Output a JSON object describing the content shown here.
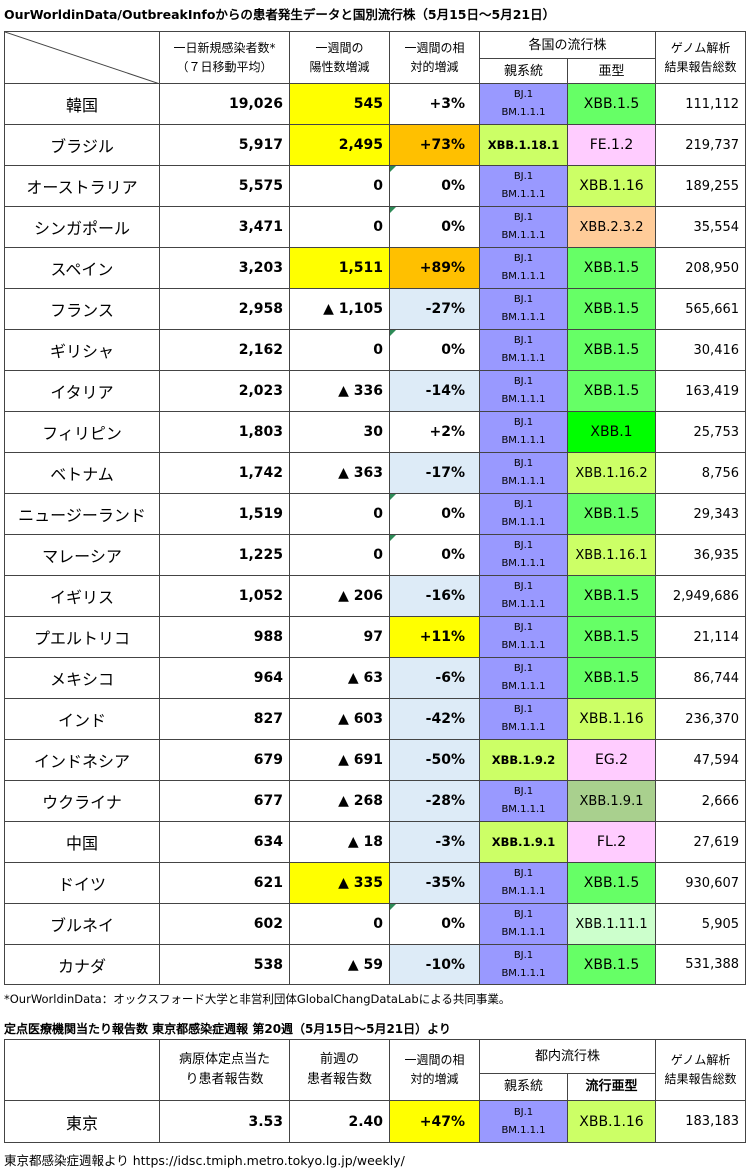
{
  "title": "OurWorldinData/OutbreakInfoからの患者発生データと国別流行株（5月15日～5月21日）",
  "headers": {
    "daily_line1": "一日新規感染者数*",
    "daily_line2": "（７日移動平均）",
    "weekly_line1": "一週間の",
    "weekly_line2": "陽性数増減",
    "rel_line1": "一週間の相",
    "rel_line2": "対的増減",
    "strains": "各国の流行株",
    "parent": "親系統",
    "sub": "亜型",
    "genome_line1": "ゲノム解析",
    "genome_line2": "結果報告総数"
  },
  "rows": [
    {
      "country": "韓国",
      "daily": "19,026",
      "weekly": "545",
      "rel": "+3%",
      "parent1": "BJ.1",
      "parent2": "BM.1.1.1",
      "sub": "XBB.1.5",
      "genome": "111,112"
    },
    {
      "country": "ブラジル",
      "daily": "5,917",
      "weekly": "2,495",
      "rel": "+73%",
      "parent1": "XBB.1.18.1",
      "parent2": "",
      "sub": "FE.1.2",
      "genome": "219,737"
    },
    {
      "country": "オーストラリア",
      "daily": "5,575",
      "weekly": "0",
      "rel": "0%",
      "parent1": "BJ.1",
      "parent2": "BM.1.1.1",
      "sub": "XBB.1.16",
      "genome": "189,255"
    },
    {
      "country": "シンガポール",
      "daily": "3,471",
      "weekly": "0",
      "rel": "0%",
      "parent1": "BJ.1",
      "parent2": "BM.1.1.1",
      "sub": "XBB.2.3.2",
      "genome": "35,554"
    },
    {
      "country": "スペイン",
      "daily": "3,203",
      "weekly": "1,511",
      "rel": "+89%",
      "parent1": "BJ.1",
      "parent2": "BM.1.1.1",
      "sub": "XBB.1.5",
      "genome": "208,950"
    },
    {
      "country": "フランス",
      "daily": "2,958",
      "weekly": "▲ 1,105",
      "rel": "-27%",
      "parent1": "BJ.1",
      "parent2": "BM.1.1.1",
      "sub": "XBB.1.5",
      "genome": "565,661"
    },
    {
      "country": "ギリシャ",
      "daily": "2,162",
      "weekly": "0",
      "rel": "0%",
      "parent1": "BJ.1",
      "parent2": "BM.1.1.1",
      "sub": "XBB.1.5",
      "genome": "30,416"
    },
    {
      "country": "イタリア",
      "daily": "2,023",
      "weekly": "▲ 336",
      "rel": "-14%",
      "parent1": "BJ.1",
      "parent2": "BM.1.1.1",
      "sub": "XBB.1.5",
      "genome": "163,419"
    },
    {
      "country": "フィリピン",
      "daily": "1,803",
      "weekly": "30",
      "rel": "+2%",
      "parent1": "BJ.1",
      "parent2": "BM.1.1.1",
      "sub": "XBB.1",
      "genome": "25,753"
    },
    {
      "country": "ベトナム",
      "daily": "1,742",
      "weekly": "▲ 363",
      "rel": "-17%",
      "parent1": "BJ.1",
      "parent2": "BM.1.1.1",
      "sub": "XBB.1.16.2",
      "genome": "8,756"
    },
    {
      "country": "ニュージーランド",
      "daily": "1,519",
      "weekly": "0",
      "rel": "0%",
      "parent1": "BJ.1",
      "parent2": "BM.1.1.1",
      "sub": "XBB.1.5",
      "genome": "29,343"
    },
    {
      "country": "マレーシア",
      "daily": "1,225",
      "weekly": "0",
      "rel": "0%",
      "parent1": "BJ.1",
      "parent2": "BM.1.1.1",
      "sub": "XBB.1.16.1",
      "genome": "36,935"
    },
    {
      "country": "イギリス",
      "daily": "1,052",
      "weekly": "▲ 206",
      "rel": "-16%",
      "parent1": "BJ.1",
      "parent2": "BM.1.1.1",
      "sub": "XBB.1.5",
      "genome": "2,949,686"
    },
    {
      "country": "プエルトリコ",
      "daily": "988",
      "weekly": "97",
      "rel": "+11%",
      "parent1": "BJ.1",
      "parent2": "BM.1.1.1",
      "sub": "XBB.1.5",
      "genome": "21,114"
    },
    {
      "country": "メキシコ",
      "daily": "964",
      "weekly": "▲ 63",
      "rel": "-6%",
      "parent1": "BJ.1",
      "parent2": "BM.1.1.1",
      "sub": "XBB.1.5",
      "genome": "86,744"
    },
    {
      "country": "インド",
      "daily": "827",
      "weekly": "▲ 603",
      "rel": "-42%",
      "parent1": "BJ.1",
      "parent2": "BM.1.1.1",
      "sub": "XBB.1.16",
      "genome": "236,370"
    },
    {
      "country": "インドネシア",
      "daily": "679",
      "weekly": "▲ 691",
      "rel": "-50%",
      "parent1": "XBB.1.9.2",
      "parent2": "",
      "sub": "EG.2",
      "genome": "47,594"
    },
    {
      "country": "ウクライナ",
      "daily": "677",
      "weekly": "▲ 268",
      "rel": "-28%",
      "parent1": "BJ.1",
      "parent2": "BM.1.1.1",
      "sub": "XBB.1.9.1",
      "genome": "2,666"
    },
    {
      "country": "中国",
      "daily": "634",
      "weekly": "▲ 18",
      "rel": "-3%",
      "parent1": "XBB.1.9.1",
      "parent2": "",
      "sub": "FL.2",
      "genome": "27,619"
    },
    {
      "country": "ドイツ",
      "daily": "621",
      "weekly": "▲ 335",
      "rel": "-35%",
      "parent1": "BJ.1",
      "parent2": "BM.1.1.1",
      "sub": "XBB.1.5",
      "genome": "930,607"
    },
    {
      "country": "ブルネイ",
      "daily": "602",
      "weekly": "0",
      "rel": "0%",
      "parent1": "BJ.1",
      "parent2": "BM.1.1.1",
      "sub": "XBB.1.11.1",
      "genome": "5,905"
    },
    {
      "country": "カナダ",
      "daily": "538",
      "weekly": "▲ 59",
      "rel": "-10%",
      "parent1": "BJ.1",
      "parent2": "BM.1.1.1",
      "sub": "XBB.1.5",
      "genome": "531,388"
    }
  ],
  "note": "*OurWorldinData：オックスフォード大学と非営利団体GlobalChangDataLabによる共同事業。",
  "tokyo_title": "定点医療機関当たり報告数  東京都感染症週報 第20週（5月15日～5月21日）より",
  "tokyo_headers": {
    "current_line1": "病原体定点当た",
    "current_line2": "り患者報告数",
    "prev_line1": "前週の",
    "prev_line2": "患者報告数",
    "rel_line1": "一週間の相",
    "rel_line2": "対的増減",
    "strains": "都内流行株",
    "parent": "親系統",
    "sub": "流行亜型",
    "genome_line1": "ゲノム解析",
    "genome_line2": "結果報告総数"
  },
  "tokyo_row": {
    "name": "東京",
    "current": "3.53",
    "prev": "2.40",
    "rel": "+47%",
    "parent1": "BJ.1",
    "parent2": "BM.1.1.1",
    "sub": "XBB.1.16",
    "genome": "183,183"
  },
  "source": "東京都感染症週報より  https://idsc.tmiph.metro.tokyo.lg.jp/weekly/",
  "colors": {
    "yellow": "#ffff00",
    "orange": "#ffc000",
    "light_blue": "#ddebf7",
    "purple": "#9999ff",
    "yellow_green": "#ccff66",
    "green": "#66ff66",
    "bright_green": "#00ff00",
    "pink": "#ffccff",
    "peach": "#ffcc99",
    "mint": "#ccffcc",
    "sage": "#a9d08e"
  }
}
